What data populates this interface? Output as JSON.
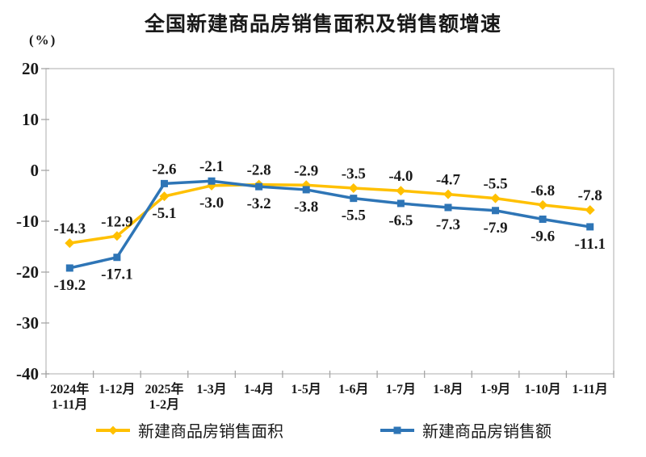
{
  "page": {
    "background": "#ffffff"
  },
  "chart_data": {
    "type": "line",
    "title": "全国新建商品房销售面积及销售额增速",
    "unit_label": "(%)",
    "xlabel": "",
    "ylabel": "",
    "grid": false,
    "legend_position": "bottom",
    "axis_color": "#BFBFBF",
    "tick_color": "#A6A6A6",
    "text_color": "#1a1a1a",
    "categories": [
      [
        "2024年",
        "1-11月"
      ],
      [
        "1-12月"
      ],
      [
        "2025年",
        "1-2月"
      ],
      [
        "1-3月"
      ],
      [
        "1-4月"
      ],
      [
        "1-5月"
      ],
      [
        "1-6月"
      ],
      [
        "1-7月"
      ],
      [
        "1-8月"
      ],
      [
        "1-9月"
      ],
      [
        "1-10月"
      ],
      [
        "1-11月"
      ]
    ],
    "y_axis": {
      "min": -40,
      "max": 20,
      "step": 10,
      "tick_labels": [
        "20",
        "10",
        "0",
        "-10",
        "-20",
        "-30",
        "-40"
      ]
    },
    "series": [
      {
        "name": "新建商品房销售面积",
        "key": "sales-area",
        "color": "#FFC000",
        "marker": "diamond",
        "values": [
          -14.3,
          -12.9,
          -5.1,
          -3.0,
          -2.8,
          -2.9,
          -3.5,
          -4.0,
          -4.7,
          -5.5,
          -6.8,
          -7.8
        ],
        "label_positions": [
          "above",
          "above",
          "below",
          "below",
          "above",
          "above",
          "above",
          "above",
          "above",
          "above",
          "above",
          "above"
        ]
      },
      {
        "name": "新建商品房销售额",
        "key": "sales-value",
        "color": "#2E75B6",
        "marker": "square",
        "values": [
          -19.2,
          -17.1,
          -2.6,
          -2.1,
          -3.2,
          -3.8,
          -5.5,
          -6.5,
          -7.3,
          -7.9,
          -9.6,
          -11.1
        ],
        "label_positions": [
          "below",
          "below",
          "above",
          "above",
          "below",
          "below",
          "below",
          "below",
          "below",
          "below",
          "below",
          "below"
        ]
      }
    ]
  }
}
